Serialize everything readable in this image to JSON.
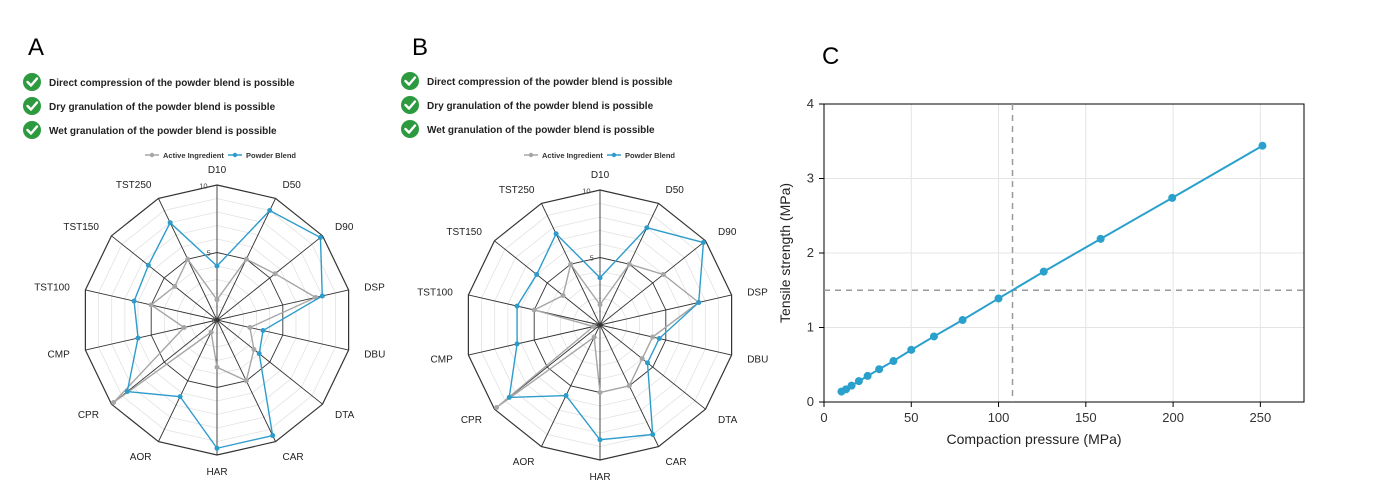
{
  "radar_axes": [
    "D10",
    "D50",
    "D90",
    "DSP",
    "DBU",
    "DTA",
    "CAR",
    "HAR",
    "AOR",
    "CPR",
    "CMP",
    "TST100",
    "TST150",
    "TST250"
  ],
  "radar_ticks": [
    "0",
    "5",
    "10"
  ],
  "check_items": [
    "Direct compression of the powder blend is possible",
    "Dry granulation of the powder blend is possible",
    "Wet granulation of the powder blend is possible"
  ],
  "legend": [
    "Active Ingredient",
    "Powder Blend"
  ],
  "colors": {
    "active": "#a6a6a6",
    "blend": "#2e9ccb",
    "check": "#2e9a3f",
    "lineC": "#2aa0cc",
    "grid": "#000000"
  },
  "chart_data": [
    {
      "panel_label": "A",
      "type": "radar",
      "axes": [
        "D10",
        "D50",
        "D90",
        "DSP",
        "DBU",
        "DTA",
        "CAR",
        "HAR",
        "AOR",
        "CPR",
        "CMP",
        "TST100",
        "TST150",
        "TST250"
      ],
      "rlim": [
        0,
        10
      ],
      "series": [
        {
          "name": "Active Ingredient",
          "values": [
            1.5,
            5,
            5.5,
            7.5,
            2.5,
            3.5,
            5,
            3.5,
            1,
            9.8,
            2.5,
            5,
            4,
            5
          ]
        },
        {
          "name": "Powder Blend",
          "values": [
            4,
            9,
            9.8,
            8,
            3.5,
            4,
            9.5,
            9.5,
            6.3,
            8.5,
            6,
            6.3,
            6.5,
            8
          ]
        }
      ]
    },
    {
      "panel_label": "B",
      "type": "radar",
      "axes": [
        "D10",
        "D50",
        "D90",
        "DSP",
        "DBU",
        "DTA",
        "CAR",
        "HAR",
        "AOR",
        "CPR",
        "CMP",
        "TST100",
        "TST150",
        "TST250"
      ],
      "rlim": [
        0,
        10
      ],
      "series": [
        {
          "name": "Active Ingredient",
          "values": [
            1.5,
            5,
            6,
            7.5,
            4,
            4,
            5,
            5,
            1,
            9.8,
            0.5,
            5,
            3.5,
            5
          ]
        },
        {
          "name": "Powder Blend",
          "values": [
            3.5,
            8,
            9.8,
            7.5,
            4.5,
            4.5,
            9,
            8.5,
            5.8,
            8.6,
            6.3,
            6.3,
            6,
            7.5
          ]
        }
      ]
    },
    {
      "panel_label": "C",
      "type": "line",
      "xlabel": "Compaction pressure (MPa)",
      "ylabel": "Tensile strength (MPa)",
      "xlim": [
        0,
        275
      ],
      "ylim": [
        0,
        4
      ],
      "xticks": [
        0,
        50,
        100,
        150,
        200,
        250
      ],
      "yticks": [
        0,
        1,
        2,
        3,
        4
      ],
      "grid": true,
      "reference_lines": {
        "x": 108,
        "y": 1.5
      },
      "series": [
        {
          "x": [
            10,
            12.6,
            15.8,
            20,
            25,
            31.6,
            39.8,
            50,
            63,
            79.4,
            100,
            125.9,
            158.5,
            199.5,
            251.2
          ],
          "y": [
            0.14,
            0.17,
            0.22,
            0.28,
            0.35,
            0.44,
            0.55,
            0.7,
            0.88,
            1.1,
            1.39,
            1.75,
            2.19,
            2.74,
            3.44
          ]
        }
      ]
    }
  ]
}
